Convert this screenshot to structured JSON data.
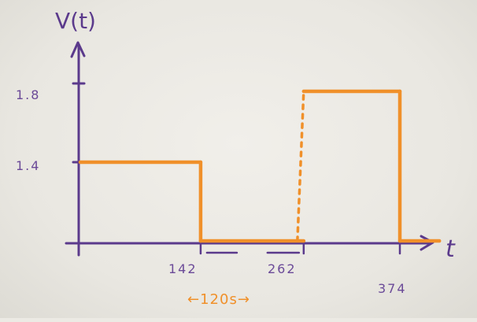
{
  "chart_data": {
    "type": "line",
    "style": "hand-drawn step function",
    "ylabel": "V(t)",
    "xlabel": "t",
    "ytick_labels": [
      "1.8",
      "1.4"
    ],
    "yticks": [
      1.8,
      1.4
    ],
    "xtick_labels": [
      "142",
      "262",
      "374"
    ],
    "xticks": [
      142,
      262,
      374
    ],
    "xlim": [
      0,
      420
    ],
    "ylim": [
      1.0,
      2.05
    ],
    "baseline": 1.0,
    "series": [
      {
        "segments": [
          {
            "x_start": 0,
            "x_end": 142,
            "value": 1.4
          },
          {
            "x_start": 142,
            "x_end": 262,
            "value": 1.0
          },
          {
            "x_start": 262,
            "x_end": 374,
            "value": 1.76
          },
          {
            "x_start": 374,
            "x_end": 420,
            "value": 1.0
          }
        ],
        "dashed_rise_at": 262
      }
    ],
    "annotation": {
      "text": "←120s→",
      "from": 142,
      "to": 262
    },
    "colors": {
      "axes": "#5b3a8c",
      "signal": "#f0902a"
    },
    "grid": false
  }
}
